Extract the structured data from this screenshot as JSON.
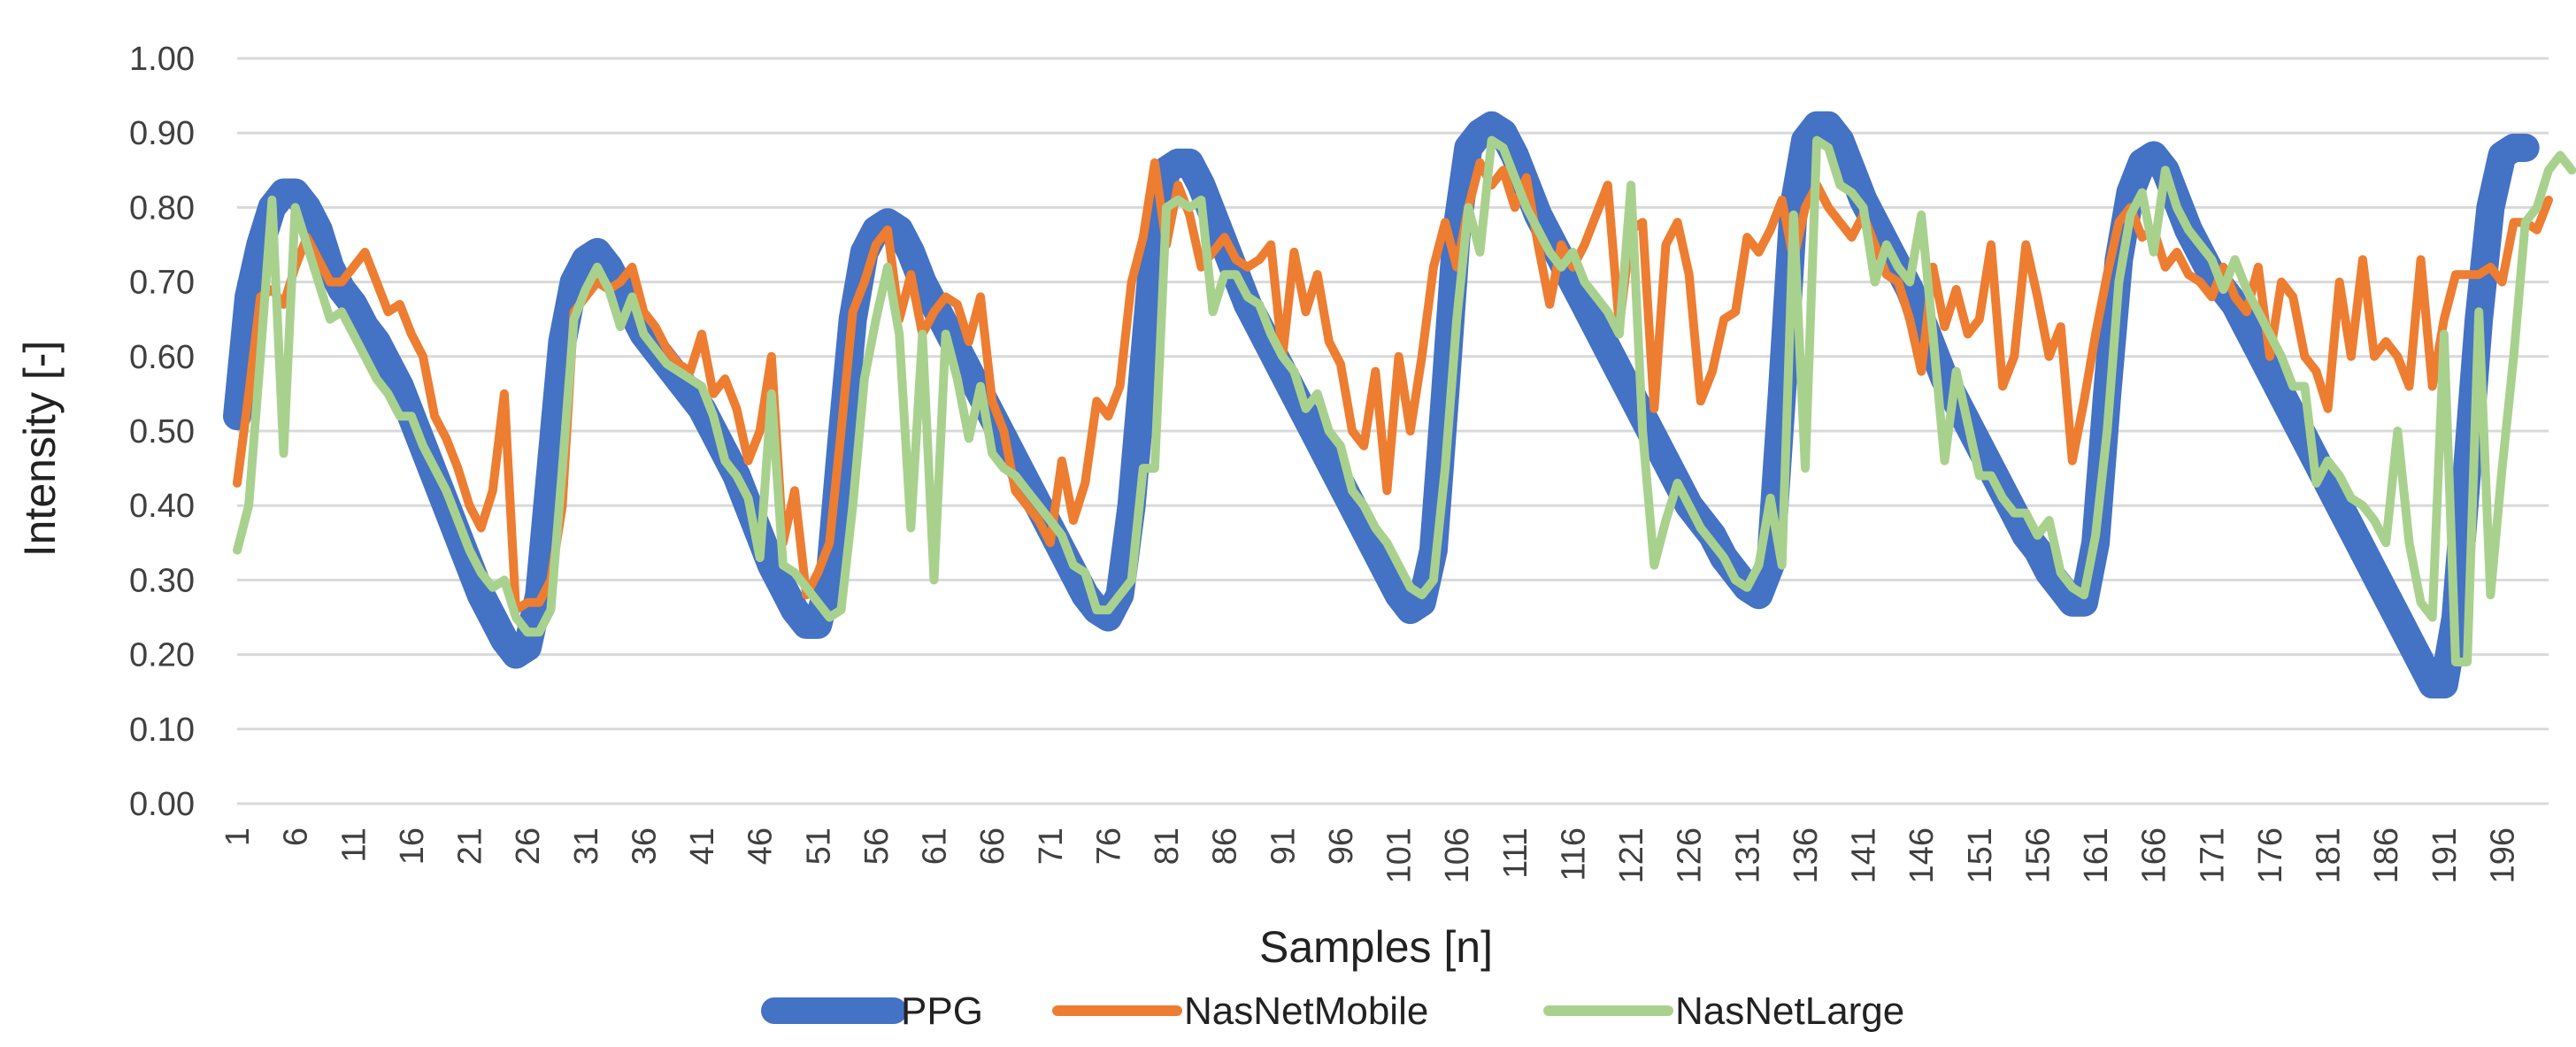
{
  "chart_data": {
    "type": "line",
    "title": "",
    "xlabel": "Samples [n]",
    "ylabel": "Intensity [-]",
    "ylim": [
      0,
      1
    ],
    "y_ticks": [
      "0.00",
      "0.10",
      "0.20",
      "0.30",
      "0.40",
      "0.50",
      "0.60",
      "0.70",
      "0.80",
      "0.90",
      "1.00"
    ],
    "x_ticks": [
      1,
      6,
      11,
      16,
      21,
      26,
      31,
      36,
      41,
      46,
      51,
      56,
      61,
      66,
      71,
      76,
      81,
      86,
      91,
      96,
      101,
      106,
      111,
      116,
      121,
      126,
      131,
      136,
      141,
      146,
      151,
      156,
      161,
      166,
      171,
      176,
      181,
      186,
      191,
      196
    ],
    "x_range": [
      1,
      200
    ],
    "grid": "horizontal",
    "legend_position": "bottom",
    "colors": {
      "ppg": "#4472C4",
      "mobile": "#ED7D31",
      "large": "#A9D18E",
      "grid": "#D9D9D9"
    },
    "series": [
      {
        "name": "PPG",
        "key": "ppg",
        "values": [
          0.52,
          0.68,
          0.75,
          0.8,
          0.82,
          0.82,
          0.8,
          0.77,
          0.72,
          0.69,
          0.67,
          0.64,
          0.62,
          0.59,
          0.56,
          0.52,
          0.48,
          0.44,
          0.4,
          0.36,
          0.32,
          0.28,
          0.25,
          0.22,
          0.2,
          0.21,
          0.28,
          0.45,
          0.62,
          0.7,
          0.73,
          0.74,
          0.72,
          0.69,
          0.66,
          0.63,
          0.61,
          0.59,
          0.57,
          0.55,
          0.53,
          0.5,
          0.47,
          0.44,
          0.4,
          0.36,
          0.32,
          0.29,
          0.26,
          0.24,
          0.24,
          0.3,
          0.48,
          0.65,
          0.74,
          0.77,
          0.78,
          0.77,
          0.74,
          0.7,
          0.67,
          0.64,
          0.61,
          0.58,
          0.55,
          0.52,
          0.49,
          0.46,
          0.43,
          0.4,
          0.37,
          0.34,
          0.31,
          0.28,
          0.26,
          0.25,
          0.28,
          0.4,
          0.58,
          0.76,
          0.85,
          0.86,
          0.86,
          0.83,
          0.79,
          0.75,
          0.71,
          0.67,
          0.64,
          0.61,
          0.58,
          0.55,
          0.52,
          0.49,
          0.46,
          0.43,
          0.4,
          0.37,
          0.34,
          0.31,
          0.28,
          0.26,
          0.27,
          0.34,
          0.55,
          0.77,
          0.88,
          0.9,
          0.91,
          0.9,
          0.87,
          0.83,
          0.79,
          0.76,
          0.73,
          0.7,
          0.67,
          0.64,
          0.61,
          0.58,
          0.55,
          0.52,
          0.49,
          0.46,
          0.43,
          0.4,
          0.38,
          0.36,
          0.33,
          0.31,
          0.29,
          0.28,
          0.32,
          0.55,
          0.8,
          0.89,
          0.91,
          0.91,
          0.89,
          0.85,
          0.81,
          0.78,
          0.75,
          0.72,
          0.69,
          0.65,
          0.61,
          0.57,
          0.54,
          0.51,
          0.48,
          0.45,
          0.42,
          0.39,
          0.36,
          0.34,
          0.31,
          0.29,
          0.27,
          0.27,
          0.35,
          0.55,
          0.73,
          0.82,
          0.86,
          0.87,
          0.85,
          0.81,
          0.77,
          0.74,
          0.71,
          0.69,
          0.67,
          0.64,
          0.61,
          0.58,
          0.55,
          0.52,
          0.49,
          0.46,
          0.43,
          0.4,
          0.37,
          0.34,
          0.31,
          0.28,
          0.25,
          0.22,
          0.19,
          0.16,
          0.16,
          0.25,
          0.45,
          0.65,
          0.8,
          0.87,
          0.88,
          0.88
        ]
      },
      {
        "name": "NasNetMobile",
        "key": "mobile",
        "values": [
          0.43,
          0.55,
          0.68,
          0.69,
          0.67,
          0.72,
          0.76,
          0.73,
          0.7,
          0.7,
          0.72,
          0.74,
          0.7,
          0.66,
          0.67,
          0.63,
          0.6,
          0.52,
          0.49,
          0.45,
          0.4,
          0.37,
          0.42,
          0.55,
          0.26,
          0.27,
          0.27,
          0.3,
          0.4,
          0.66,
          0.68,
          0.7,
          0.69,
          0.7,
          0.72,
          0.66,
          0.64,
          0.61,
          0.59,
          0.58,
          0.63,
          0.55,
          0.57,
          0.53,
          0.46,
          0.5,
          0.6,
          0.35,
          0.42,
          0.28,
          0.31,
          0.35,
          0.5,
          0.66,
          0.7,
          0.75,
          0.77,
          0.65,
          0.71,
          0.63,
          0.66,
          0.68,
          0.67,
          0.62,
          0.68,
          0.54,
          0.5,
          0.42,
          0.4,
          0.38,
          0.35,
          0.46,
          0.38,
          0.43,
          0.54,
          0.52,
          0.56,
          0.7,
          0.76,
          0.86,
          0.75,
          0.83,
          0.79,
          0.72,
          0.74,
          0.76,
          0.73,
          0.72,
          0.73,
          0.75,
          0.6,
          0.74,
          0.66,
          0.71,
          0.62,
          0.59,
          0.5,
          0.48,
          0.58,
          0.42,
          0.6,
          0.5,
          0.6,
          0.72,
          0.78,
          0.72,
          0.8,
          0.86,
          0.83,
          0.85,
          0.8,
          0.84,
          0.75,
          0.67,
          0.75,
          0.72,
          0.75,
          0.79,
          0.83,
          0.64,
          0.77,
          0.78,
          0.53,
          0.75,
          0.78,
          0.71,
          0.54,
          0.58,
          0.65,
          0.66,
          0.76,
          0.74,
          0.77,
          0.81,
          0.73,
          0.8,
          0.83,
          0.8,
          0.78,
          0.76,
          0.79,
          0.75,
          0.71,
          0.7,
          0.65,
          0.58,
          0.72,
          0.64,
          0.69,
          0.63,
          0.65,
          0.75,
          0.56,
          0.6,
          0.75,
          0.68,
          0.6,
          0.64,
          0.46,
          0.54,
          0.63,
          0.71,
          0.78,
          0.8,
          0.76,
          0.77,
          0.72,
          0.74,
          0.71,
          0.7,
          0.68,
          0.72,
          0.68,
          0.66,
          0.72,
          0.6,
          0.7,
          0.68,
          0.6,
          0.58,
          0.53,
          0.7,
          0.6,
          0.73,
          0.6,
          0.62,
          0.6,
          0.56,
          0.73,
          0.56,
          0.65,
          0.71,
          0.71,
          0.71,
          0.72,
          0.7,
          0.78,
          0.78,
          0.77,
          0.81
        ]
      },
      {
        "name": "NasNetLarge",
        "key": "large",
        "values": [
          0.34,
          0.4,
          0.6,
          0.81,
          0.47,
          0.8,
          0.75,
          0.7,
          0.65,
          0.66,
          0.63,
          0.6,
          0.57,
          0.55,
          0.52,
          0.52,
          0.48,
          0.45,
          0.42,
          0.38,
          0.34,
          0.31,
          0.29,
          0.3,
          0.25,
          0.23,
          0.23,
          0.26,
          0.45,
          0.65,
          0.69,
          0.72,
          0.69,
          0.64,
          0.68,
          0.63,
          0.61,
          0.59,
          0.58,
          0.57,
          0.56,
          0.52,
          0.46,
          0.44,
          0.41,
          0.33,
          0.55,
          0.32,
          0.31,
          0.29,
          0.27,
          0.25,
          0.26,
          0.4,
          0.57,
          0.65,
          0.72,
          0.63,
          0.37,
          0.63,
          0.3,
          0.63,
          0.57,
          0.49,
          0.56,
          0.47,
          0.45,
          0.44,
          0.42,
          0.4,
          0.38,
          0.36,
          0.32,
          0.31,
          0.26,
          0.26,
          0.28,
          0.3,
          0.45,
          0.45,
          0.8,
          0.81,
          0.8,
          0.81,
          0.66,
          0.71,
          0.71,
          0.68,
          0.67,
          0.63,
          0.6,
          0.58,
          0.53,
          0.55,
          0.5,
          0.48,
          0.42,
          0.4,
          0.37,
          0.35,
          0.32,
          0.29,
          0.28,
          0.3,
          0.45,
          0.65,
          0.8,
          0.74,
          0.89,
          0.88,
          0.84,
          0.8,
          0.77,
          0.74,
          0.72,
          0.74,
          0.7,
          0.68,
          0.66,
          0.63,
          0.83,
          0.5,
          0.32,
          0.38,
          0.43,
          0.4,
          0.37,
          0.35,
          0.33,
          0.3,
          0.29,
          0.32,
          0.41,
          0.32,
          0.79,
          0.45,
          0.89,
          0.88,
          0.83,
          0.82,
          0.8,
          0.7,
          0.75,
          0.72,
          0.7,
          0.79,
          0.63,
          0.46,
          0.58,
          0.51,
          0.44,
          0.44,
          0.41,
          0.39,
          0.39,
          0.36,
          0.38,
          0.31,
          0.29,
          0.28,
          0.36,
          0.5,
          0.7,
          0.79,
          0.82,
          0.74,
          0.85,
          0.8,
          0.77,
          0.75,
          0.73,
          0.69,
          0.73,
          0.69,
          0.66,
          0.63,
          0.6,
          0.56,
          0.56,
          0.43,
          0.46,
          0.44,
          0.41,
          0.4,
          0.38,
          0.35,
          0.5,
          0.35,
          0.27,
          0.25,
          0.63,
          0.19,
          0.19,
          0.66,
          0.28,
          0.45,
          0.6,
          0.78,
          0.8,
          0.85,
          0.87,
          0.85
        ]
      }
    ]
  }
}
